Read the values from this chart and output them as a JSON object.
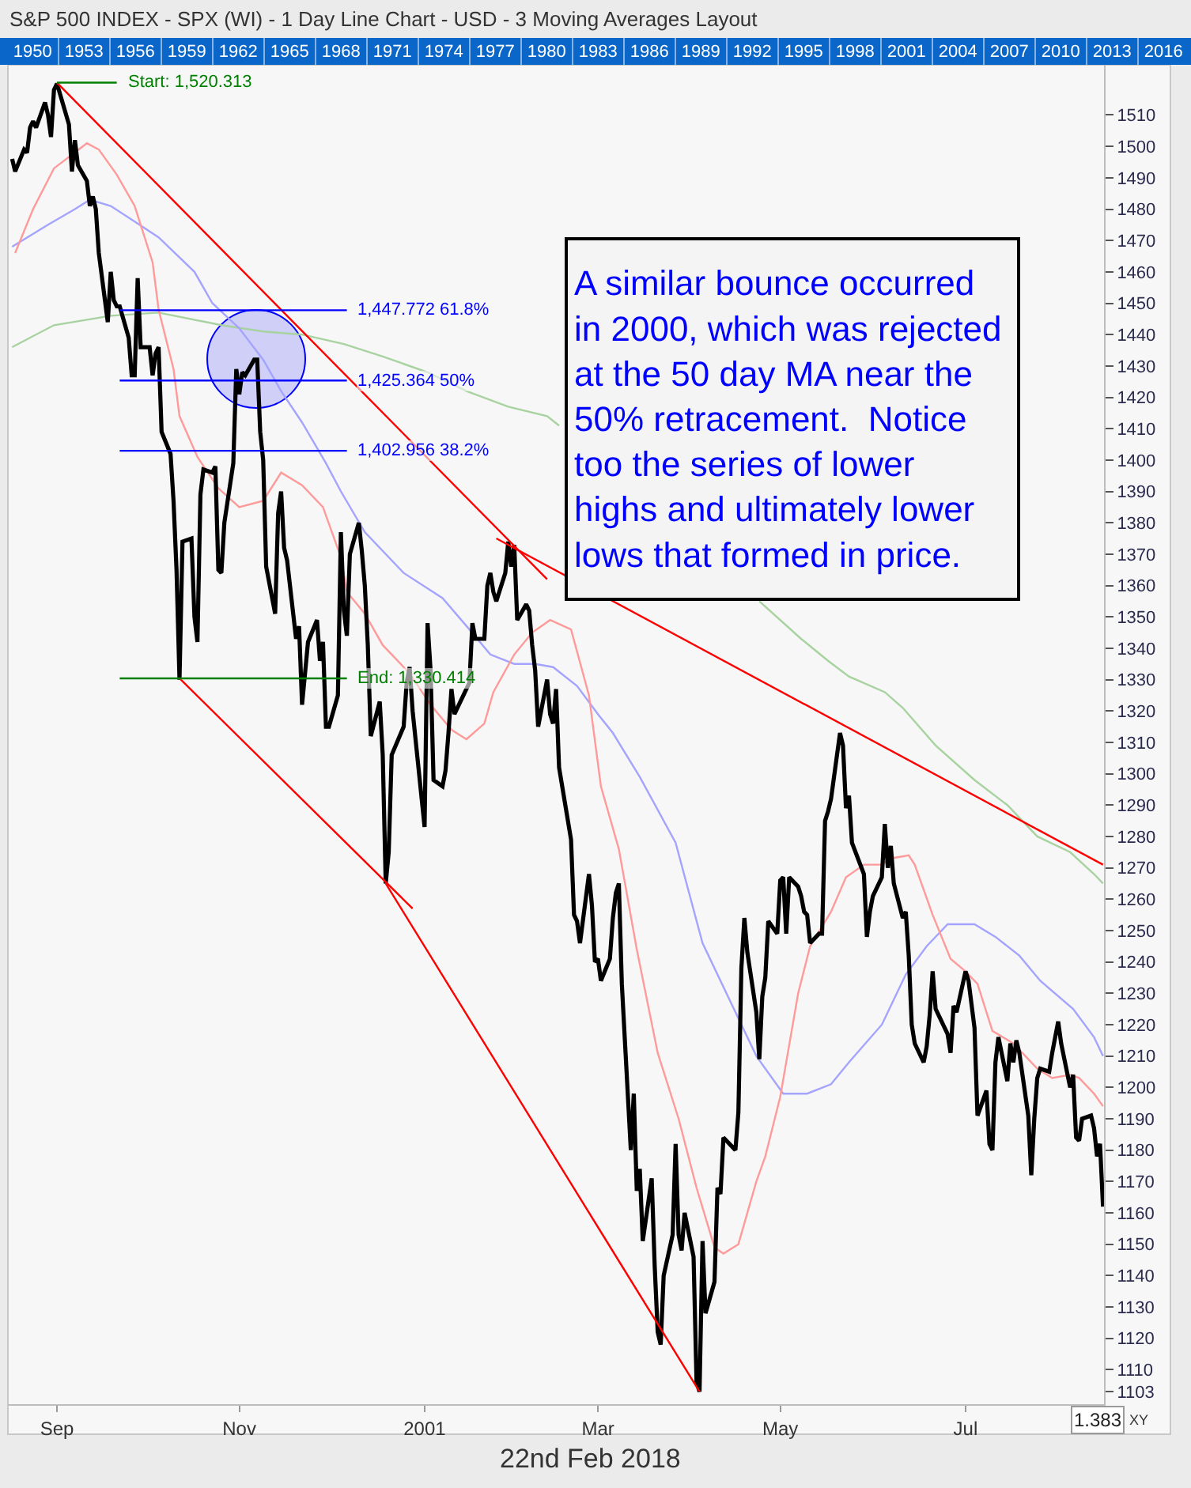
{
  "chart_data": {
    "type": "line",
    "title": "S&P 500 INDEX - SPX (WI) - 1 Day Line Chart - USD - 3 Moving Averages Layout",
    "xlim": [
      "2000-08-15T14:00",
      "2001-08-17T08:00"
    ],
    "xticks": [
      {
        "value": "2000-09-01",
        "label": "Sep"
      },
      {
        "value": "2000-11-01",
        "label": "Nov"
      },
      {
        "value": "2001-01-02",
        "label": "2001"
      },
      {
        "value": "2001-03-01",
        "label": "Mar"
      },
      {
        "value": "2001-05-01",
        "label": "May"
      },
      {
        "value": "2001-07-02",
        "label": "Jul"
      }
    ],
    "ylim": [
      1099,
      1526
    ],
    "yticks": [
      1103,
      1110,
      1120,
      1130,
      1140,
      1150,
      1160,
      1170,
      1180,
      1190,
      1200,
      1210,
      1220,
      1230,
      1240,
      1250,
      1260,
      1270,
      1280,
      1290,
      1300,
      1310,
      1320,
      1330,
      1340,
      1350,
      1360,
      1370,
      1380,
      1390,
      1400,
      1410,
      1420,
      1430,
      1440,
      1450,
      1460,
      1470,
      1480,
      1490,
      1500,
      1510
    ],
    "x2lim": [
      1948.1,
      2017.6
    ],
    "x2ticks": [
      1950,
      1953,
      1956,
      1959,
      1962,
      1965,
      1968,
      1971,
      1974,
      1977,
      1980,
      1983,
      1986,
      1989,
      1992,
      1995,
      1998,
      2001,
      2004,
      2007,
      2010,
      2013,
      2016
    ],
    "series": [
      {
        "color": "#a8d2a0",
        "x": [
          "2000-08-17",
          "2000-08-31",
          "2000-09-19",
          "2000-10-05",
          "2000-10-26",
          "2000-11-09",
          "2000-11-22",
          "2000-12-06",
          "2000-12-19",
          "2001-01-03",
          "2001-01-16",
          "2001-01-30",
          "2001-02-12",
          "2001-02-16",
          "2001-03-26",
          "2001-04-24",
          "2001-05-08",
          "2001-05-17",
          "2001-05-24",
          "2001-06-05",
          "2001-06-11",
          "2001-06-22",
          "2001-07-05",
          "2001-07-16",
          "2001-07-26",
          "2001-08-06",
          "2001-08-14",
          "2001-08-17"
        ],
        "values": [
          1436,
          1443,
          1446,
          1447,
          1443,
          1441,
          1440,
          1437,
          1433,
          1428,
          1422,
          1417,
          1414,
          1411,
          null,
          1355,
          1343,
          1336,
          1331,
          1326,
          1321,
          1309,
          1298,
          1290,
          1280,
          1275,
          1268,
          1265
        ]
      },
      {
        "color": "#a4a4ff",
        "x": [
          "2000-08-17",
          "2000-08-29",
          "2000-09-07",
          "2000-09-12",
          "2000-09-19",
          "2000-09-27",
          "2000-10-05",
          "2000-10-17",
          "2000-10-23",
          "2000-11-01",
          "2000-11-09",
          "2000-11-15",
          "2000-11-22",
          "2000-11-30",
          "2000-12-05",
          "2000-12-13",
          "2000-12-26",
          "2001-01-08",
          "2001-01-17",
          "2001-01-24",
          "2001-02-01",
          "2001-02-08",
          "2001-02-14",
          "2001-02-22",
          "2001-03-01",
          "2001-03-06",
          "2001-03-15",
          "2001-03-27",
          "2001-04-05",
          "2001-04-16",
          "2001-04-23",
          "2001-05-02",
          "2001-05-10",
          "2001-05-18",
          "2001-05-24",
          "2001-06-04",
          "2001-06-12",
          "2001-06-19",
          "2001-06-26",
          "2001-07-05",
          "2001-07-12",
          "2001-07-20",
          "2001-07-27",
          "2001-08-07",
          "2001-08-14",
          "2001-08-17"
        ],
        "values": [
          1468,
          1475,
          1480,
          1483,
          1481,
          1476,
          1471,
          1460,
          1450,
          1442,
          1432,
          1422,
          1412,
          1399,
          1390,
          1377,
          1364,
          1356,
          1346,
          1338,
          1335,
          1335,
          1334,
          1328,
          1319,
          1313,
          1299,
          1278,
          1246,
          1224,
          1210,
          1198,
          1198,
          1201,
          1208,
          1220,
          1236,
          1245,
          1252,
          1252,
          1248,
          1242,
          1234,
          1225,
          1216,
          1210
        ]
      },
      {
        "color": "#ff9a9a",
        "x": [
          "2000-08-18",
          "2000-08-24",
          "2000-08-31",
          "2000-09-11",
          "2000-09-15",
          "2000-09-21",
          "2000-09-27",
          "2000-10-03",
          "2000-10-05",
          "2000-10-10",
          "2000-10-12",
          "2000-10-18",
          "2000-10-25",
          "2000-11-01",
          "2000-11-09",
          "2000-11-15",
          "2000-11-22",
          "2000-11-29",
          "2000-12-05",
          "2000-12-07",
          "2000-12-13",
          "2000-12-19",
          "2000-12-28",
          "2001-01-04",
          "2001-01-11",
          "2001-01-16",
          "2001-01-22",
          "2001-01-25",
          "2001-02-01",
          "2001-02-07",
          "2001-02-13",
          "2001-02-20",
          "2001-02-26",
          "2001-03-02",
          "2001-03-08",
          "2001-03-14",
          "2001-03-21",
          "2001-03-28",
          "2001-04-03",
          "2001-04-09",
          "2001-04-12",
          "2001-04-17",
          "2001-04-23",
          "2001-04-26",
          "2001-05-01",
          "2001-05-07",
          "2001-05-11",
          "2001-05-18",
          "2001-05-23",
          "2001-05-29",
          "2001-06-04",
          "2001-06-07",
          "2001-06-13",
          "2001-06-15",
          "2001-06-21",
          "2001-06-27",
          "2001-07-02",
          "2001-07-06",
          "2001-07-11",
          "2001-07-18",
          "2001-07-23",
          "2001-07-26",
          "2001-07-31",
          "2001-08-06",
          "2001-08-09",
          "2001-08-14",
          "2001-08-17"
        ],
        "values": [
          1466,
          1480,
          1493,
          1501,
          1499,
          1491,
          1481,
          1463,
          1448,
          1429,
          1414,
          1401,
          1391,
          1385,
          1387,
          1396,
          1392,
          1385,
          1369,
          1358,
          1351,
          1341,
          1332,
          1322,
          1314,
          1311,
          1316,
          1326,
          1338,
          1345,
          1349,
          1346,
          1325,
          1296,
          1276,
          1244,
          1211,
          1190,
          1168,
          1149,
          1147,
          1150,
          1170,
          1178,
          1197,
          1230,
          1245,
          1256,
          1267,
          1271,
          1271,
          1273,
          1274,
          1271,
          1255,
          1241,
          1237,
          1233,
          1218,
          1214,
          1209,
          1206,
          1203,
          1204,
          1203,
          1198,
          1194
        ]
      },
      {
        "color": "#000000",
        "x": [
          "2000-08-17",
          "2000-08-18",
          "2000-08-21",
          "2000-08-22",
          "2000-08-23",
          "2000-08-24",
          "2000-08-25",
          "2000-08-28",
          "2000-08-29",
          "2000-08-30",
          "2000-08-31",
          "2000-09-01",
          "2000-09-05",
          "2000-09-06",
          "2000-09-07",
          "2000-09-08",
          "2000-09-11",
          "2000-09-12",
          "2000-09-13",
          "2000-09-14",
          "2000-09-15",
          "2000-09-18",
          "2000-09-19",
          "2000-09-20",
          "2000-09-21",
          "2000-09-22",
          "2000-09-25",
          "2000-09-26",
          "2000-09-27",
          "2000-09-28",
          "2000-09-29",
          "2000-10-02",
          "2000-10-03",
          "2000-10-04",
          "2000-10-05",
          "2000-10-06",
          "2000-10-09",
          "2000-10-10",
          "2000-10-11",
          "2000-10-12",
          "2000-10-13",
          "2000-10-16",
          "2000-10-17",
          "2000-10-18",
          "2000-10-19",
          "2000-10-20",
          "2000-10-23",
          "2000-10-24",
          "2000-10-25",
          "2000-10-26",
          "2000-10-27",
          "2000-10-30",
          "2000-10-31",
          "2000-11-01",
          "2000-11-02",
          "2000-11-03",
          "2000-11-06",
          "2000-11-07",
          "2000-11-08",
          "2000-11-09",
          "2000-11-10",
          "2000-11-13",
          "2000-11-14",
          "2000-11-15",
          "2000-11-16",
          "2000-11-17",
          "2000-11-20",
          "2000-11-21",
          "2000-11-22",
          "2000-11-24",
          "2000-11-27",
          "2000-11-28",
          "2000-11-29",
          "2000-11-30",
          "2000-12-01",
          "2000-12-04",
          "2000-12-05",
          "2000-12-06",
          "2000-12-07",
          "2000-12-08",
          "2000-12-11",
          "2000-12-12",
          "2000-12-13",
          "2000-12-14",
          "2000-12-15",
          "2000-12-18",
          "2000-12-19",
          "2000-12-20",
          "2000-12-21",
          "2000-12-22",
          "2000-12-26",
          "2000-12-27",
          "2000-12-28",
          "2000-12-29",
          "2001-01-02",
          "2001-01-03",
          "2001-01-04",
          "2001-01-05",
          "2001-01-08",
          "2001-01-09",
          "2001-01-10",
          "2001-01-11",
          "2001-01-12",
          "2001-01-16",
          "2001-01-17",
          "2001-01-18",
          "2001-01-19",
          "2001-01-22",
          "2001-01-23",
          "2001-01-24",
          "2001-01-25",
          "2001-01-26",
          "2001-01-29",
          "2001-01-30",
          "2001-01-31",
          "2001-02-01",
          "2001-02-02",
          "2001-02-05",
          "2001-02-06",
          "2001-02-07",
          "2001-02-08",
          "2001-02-09",
          "2001-02-12",
          "2001-02-13",
          "2001-02-14",
          "2001-02-15",
          "2001-02-16",
          "2001-02-20",
          "2001-02-21",
          "2001-02-22",
          "2001-02-23",
          "2001-02-26",
          "2001-02-27",
          "2001-02-28",
          "2001-03-01",
          "2001-03-02",
          "2001-03-05",
          "2001-03-06",
          "2001-03-07",
          "2001-03-08",
          "2001-03-09",
          "2001-03-12",
          "2001-03-13",
          "2001-03-14",
          "2001-03-15",
          "2001-03-16",
          "2001-03-19",
          "2001-03-20",
          "2001-03-21",
          "2001-03-22",
          "2001-03-23",
          "2001-03-26",
          "2001-03-27",
          "2001-03-28",
          "2001-03-29",
          "2001-03-30",
          "2001-04-02",
          "2001-04-03",
          "2001-04-04",
          "2001-04-05",
          "2001-04-06",
          "2001-04-09",
          "2001-04-10",
          "2001-04-11",
          "2001-04-12",
          "2001-04-16",
          "2001-04-17",
          "2001-04-18",
          "2001-04-19",
          "2001-04-20",
          "2001-04-23",
          "2001-04-24",
          "2001-04-25",
          "2001-04-26",
          "2001-04-27",
          "2001-04-30",
          "2001-05-01",
          "2001-05-02",
          "2001-05-03",
          "2001-05-04",
          "2001-05-07",
          "2001-05-08",
          "2001-05-09",
          "2001-05-10",
          "2001-05-11",
          "2001-05-14",
          "2001-05-15",
          "2001-05-16",
          "2001-05-17",
          "2001-05-18",
          "2001-05-21",
          "2001-05-22",
          "2001-05-23",
          "2001-05-24",
          "2001-05-25",
          "2001-05-29",
          "2001-05-30",
          "2001-05-31",
          "2001-06-01",
          "2001-06-04",
          "2001-06-05",
          "2001-06-06",
          "2001-06-07",
          "2001-06-08",
          "2001-06-11",
          "2001-06-12",
          "2001-06-13",
          "2001-06-14",
          "2001-06-15",
          "2001-06-18",
          "2001-06-19",
          "2001-06-20",
          "2001-06-21",
          "2001-06-22",
          "2001-06-25",
          "2001-06-26",
          "2001-06-27",
          "2001-06-28",
          "2001-06-29",
          "2001-07-02",
          "2001-07-03",
          "2001-07-05",
          "2001-07-06",
          "2001-07-09",
          "2001-07-10",
          "2001-07-11",
          "2001-07-12",
          "2001-07-13",
          "2001-07-16",
          "2001-07-17",
          "2001-07-18",
          "2001-07-19",
          "2001-07-20",
          "2001-07-23",
          "2001-07-24",
          "2001-07-25",
          "2001-07-26",
          "2001-07-27",
          "2001-07-30",
          "2001-07-31",
          "2001-08-01",
          "2001-08-02",
          "2001-08-03",
          "2001-08-06",
          "2001-08-07",
          "2001-08-08",
          "2001-08-09",
          "2001-08-10",
          "2001-08-13",
          "2001-08-14",
          "2001-08-15",
          "2001-08-16",
          "2001-08-17"
        ],
        "values": [
          1496,
          1492,
          1499,
          1498,
          1506,
          1508,
          1506,
          1514,
          1510,
          1503,
          1518,
          1520,
          1507,
          1492,
          1502,
          1494,
          1489,
          1481,
          1484,
          1480,
          1466,
          1444,
          1460,
          1451,
          1449,
          1449,
          1439,
          1427,
          1427,
          1458,
          1436,
          1436,
          1427,
          1434,
          1436,
          1409,
          1402,
          1387,
          1365,
          1330,
          1374,
          1375,
          1350,
          1342,
          1389,
          1397,
          1396,
          1398,
          1365,
          1364,
          1380,
          1399,
          1429,
          1421,
          1428,
          1427,
          1432,
          1432,
          1409,
          1400,
          1366,
          1351,
          1383,
          1390,
          1372,
          1368,
          1343,
          1347,
          1322,
          1342,
          1349,
          1336,
          1342,
          1315,
          1315,
          1325,
          1377,
          1352,
          1344,
          1370,
          1380,
          1371,
          1360,
          1341,
          1312,
          1323,
          1306,
          1265,
          1275,
          1306,
          1315,
          1329,
          1334,
          1320,
          1283,
          1348,
          1333,
          1298,
          1296,
          1301,
          1313,
          1327,
          1319,
          1327,
          1329,
          1348,
          1343,
          1343,
          1360,
          1364,
          1358,
          1355,
          1364,
          1374,
          1366,
          1373,
          1349,
          1354,
          1352,
          1341,
          1333,
          1315,
          1330,
          1319,
          1316,
          1327,
          1302,
          1279,
          1255,
          1253,
          1246,
          1268,
          1258,
          1240,
          1241,
          1234,
          1241,
          1254,
          1262,
          1265,
          1233,
          1180,
          1198,
          1167,
          1174,
          1151,
          1171,
          1143,
          1122,
          1118,
          1140,
          1153,
          1182,
          1153,
          1148,
          1160,
          1146,
          1106,
          1103,
          1151,
          1128,
          1138,
          1168,
          1166,
          1184,
          1180,
          1192,
          1238,
          1254,
          1243,
          1224,
          1209,
          1229,
          1235,
          1253,
          1249,
          1266,
          1267,
          1249,
          1267,
          1264,
          1261,
          1256,
          1255,
          1246,
          1249,
          1249,
          1285,
          1288,
          1292,
          1313,
          1309,
          1289,
          1293,
          1278,
          1268,
          1248,
          1256,
          1261,
          1267,
          1284,
          1270,
          1277,
          1265,
          1254,
          1256,
          1242,
          1220,
          1214,
          1208,
          1213,
          1223,
          1237,
          1225,
          1219,
          1217,
          1211,
          1226,
          1224,
          1237,
          1234,
          1219,
          1191,
          1199,
          1182,
          1180,
          1208,
          1216,
          1202,
          1214,
          1208,
          1215,
          1211,
          1191,
          1172,
          1190,
          1203,
          1206,
          1205,
          1211,
          1216,
          1221,
          1214,
          1200,
          1204,
          1184,
          1183,
          1190,
          1191,
          1187,
          1178,
          1182,
          1162
        ]
      },
      {
        "color": "#ff0000",
        "x": [
          "2000-09-01",
          "2001-02-12"
        ],
        "values": [
          1520.313,
          1362
        ]
      },
      {
        "color": "#ff0000",
        "x": [
          "2001-01-26",
          "2001-08-17"
        ],
        "values": [
          1375,
          1271
        ]
      },
      {
        "color": "#ff0000",
        "x": [
          "2000-10-12",
          "2000-12-29"
        ],
        "values": [
          1330.414,
          1257
        ]
      },
      {
        "color": "#ff0000",
        "x": [
          "2000-12-20",
          "2001-04-04"
        ],
        "values": [
          1265,
          1103
        ]
      },
      {
        "color": "#008000",
        "x": [
          "2000-09-01",
          "2000-09-21"
        ],
        "values": [
          1520.313,
          1520.313
        ]
      },
      {
        "color": "#0000ff",
        "x": [
          "2000-09-22",
          "2000-12-07"
        ],
        "values": [
          1447.772,
          1447.772
        ]
      },
      {
        "color": "#0000ff",
        "x": [
          "2000-09-22",
          "2000-12-07"
        ],
        "values": [
          1425.364,
          1425.364
        ]
      },
      {
        "color": "#0000ff",
        "x": [
          "2000-09-22",
          "2000-12-07"
        ],
        "values": [
          1402.956,
          1402.956
        ]
      },
      {
        "color": "#008000",
        "x": [
          "2000-09-22",
          "2000-12-07"
        ],
        "values": [
          1330.414,
          1330.414
        ]
      }
    ],
    "annotations": [
      "A similar bounce occurred\nin 2000, which was rejected\nat the 50 day MA near the\n50% retracement.  Notice\ntoo the series of lower\nhighs and ultimately lower\nlows that formed in price.",
      {
        "text": "Start: 1,520.313",
        "x": "2000-09-21",
        "y": 1520.313
      },
      {
        "text": "1,447.772 61.8%",
        "x": "2000-12-07",
        "y": 1447.772
      },
      {
        "text": "1,425.364 50%",
        "x": "2000-12-07",
        "y": 1425.364
      },
      {
        "text": "1,402.956 38.2%",
        "x": "2000-12-07",
        "y": 1402.956
      },
      {
        "text": "End: 1,330.414",
        "x": "2000-12-07",
        "y": 1330.414
      },
      "22nd Feb 2018",
      "1.383",
      "XY"
    ]
  }
}
